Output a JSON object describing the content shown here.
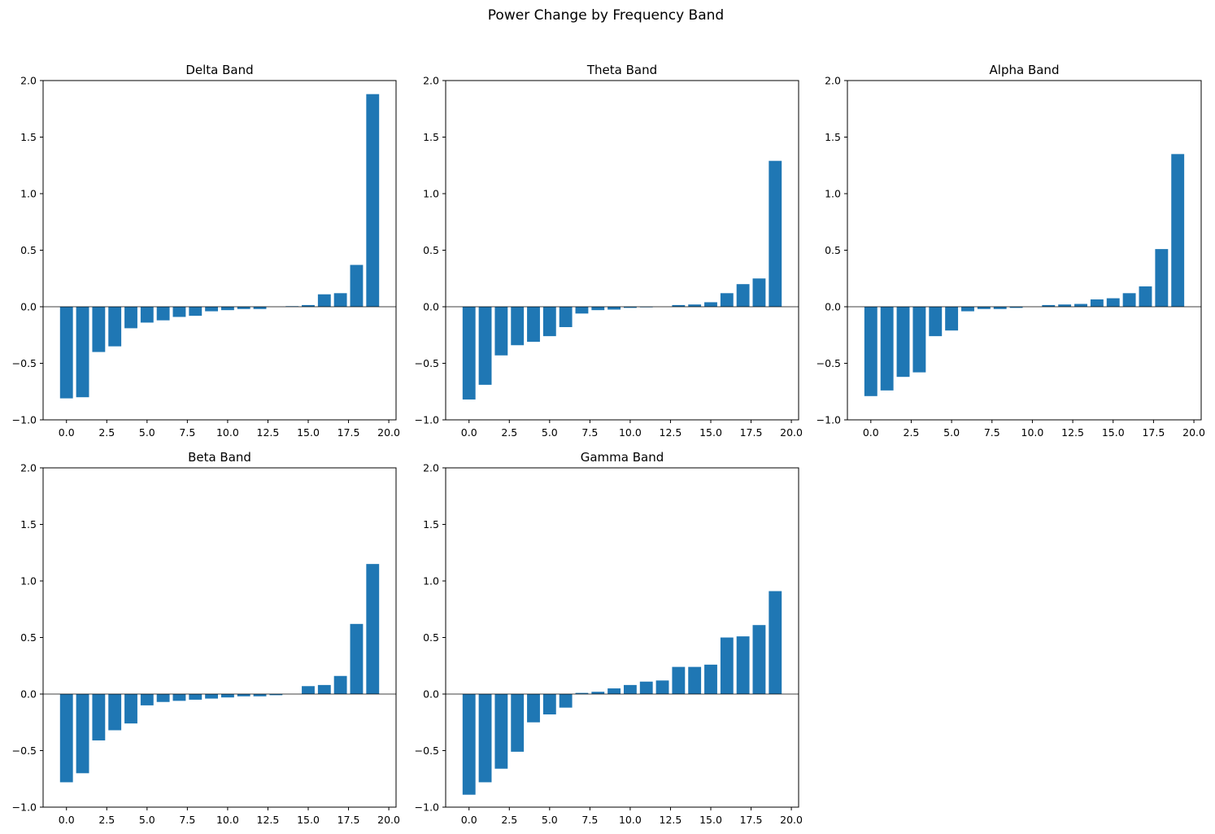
{
  "figure": {
    "title": "Power Change by Frequency Band"
  },
  "colors": {
    "bar": "#1f77b4",
    "axis": "#000000",
    "background": "#ffffff"
  },
  "chart_data": [
    {
      "type": "bar",
      "title": "Delta Band",
      "x": [
        0,
        1,
        2,
        3,
        4,
        5,
        6,
        7,
        8,
        9,
        10,
        11,
        12,
        13,
        14,
        15,
        16,
        17,
        18,
        19
      ],
      "values": [
        -0.81,
        -0.8,
        -0.4,
        -0.35,
        -0.19,
        -0.14,
        -0.12,
        -0.09,
        -0.08,
        -0.04,
        -0.03,
        -0.02,
        -0.02,
        0.0,
        0.005,
        0.015,
        0.11,
        0.12,
        0.37,
        1.88
      ],
      "xlim": [
        -1.45,
        20.45
      ],
      "ylim": [
        -1.0,
        2.0
      ],
      "xticks": [
        "0.0",
        "2.5",
        "5.0",
        "7.5",
        "10.0",
        "12.5",
        "15.0",
        "17.5",
        "20.0"
      ],
      "yticks": [
        "−1.0",
        "−0.5",
        "0.0",
        "0.5",
        "1.0",
        "1.5",
        "2.0"
      ],
      "grid": false
    },
    {
      "type": "bar",
      "title": "Theta Band",
      "x": [
        0,
        1,
        2,
        3,
        4,
        5,
        6,
        7,
        8,
        9,
        10,
        11,
        12,
        13,
        14,
        15,
        16,
        17,
        18,
        19
      ],
      "values": [
        -0.82,
        -0.69,
        -0.43,
        -0.34,
        -0.31,
        -0.26,
        -0.18,
        -0.06,
        -0.03,
        -0.025,
        -0.01,
        -0.005,
        0.0,
        0.015,
        0.02,
        0.04,
        0.12,
        0.2,
        0.25,
        1.29
      ],
      "xlim": [
        -1.45,
        20.45
      ],
      "ylim": [
        -1.0,
        2.0
      ],
      "xticks": [
        "0.0",
        "2.5",
        "5.0",
        "7.5",
        "10.0",
        "12.5",
        "15.0",
        "17.5",
        "20.0"
      ],
      "yticks": [
        "−1.0",
        "−0.5",
        "0.0",
        "0.5",
        "1.0",
        "1.5",
        "2.0"
      ],
      "grid": false
    },
    {
      "type": "bar",
      "title": "Alpha Band",
      "x": [
        0,
        1,
        2,
        3,
        4,
        5,
        6,
        7,
        8,
        9,
        10,
        11,
        12,
        13,
        14,
        15,
        16,
        17,
        18,
        19
      ],
      "values": [
        -0.79,
        -0.74,
        -0.62,
        -0.58,
        -0.26,
        -0.21,
        -0.04,
        -0.02,
        -0.02,
        -0.01,
        0.0,
        0.015,
        0.02,
        0.025,
        0.065,
        0.075,
        0.12,
        0.18,
        0.51,
        1.35
      ],
      "xlim": [
        -1.45,
        20.45
      ],
      "ylim": [
        -1.0,
        2.0
      ],
      "xticks": [
        "0.0",
        "2.5",
        "5.0",
        "7.5",
        "10.0",
        "12.5",
        "15.0",
        "17.5",
        "20.0"
      ],
      "yticks": [
        "−1.0",
        "−0.5",
        "0.0",
        "0.5",
        "1.0",
        "1.5",
        "2.0"
      ],
      "grid": false
    },
    {
      "type": "bar",
      "title": "Beta Band",
      "x": [
        0,
        1,
        2,
        3,
        4,
        5,
        6,
        7,
        8,
        9,
        10,
        11,
        12,
        13,
        14,
        15,
        16,
        17,
        18,
        19
      ],
      "values": [
        -0.78,
        -0.7,
        -0.41,
        -0.32,
        -0.26,
        -0.1,
        -0.07,
        -0.06,
        -0.05,
        -0.04,
        -0.03,
        -0.02,
        -0.02,
        -0.01,
        0.0,
        0.07,
        0.08,
        0.16,
        0.62,
        1.15
      ],
      "xlim": [
        -1.45,
        20.45
      ],
      "ylim": [
        -1.0,
        2.0
      ],
      "xticks": [
        "0.0",
        "2.5",
        "5.0",
        "7.5",
        "10.0",
        "12.5",
        "15.0",
        "17.5",
        "20.0"
      ],
      "yticks": [
        "−1.0",
        "−0.5",
        "0.0",
        "0.5",
        "1.0",
        "1.5",
        "2.0"
      ],
      "grid": false
    },
    {
      "type": "bar",
      "title": "Gamma Band",
      "x": [
        0,
        1,
        2,
        3,
        4,
        5,
        6,
        7,
        8,
        9,
        10,
        11,
        12,
        13,
        14,
        15,
        16,
        17,
        18,
        19
      ],
      "values": [
        -0.89,
        -0.78,
        -0.66,
        -0.51,
        -0.25,
        -0.18,
        -0.12,
        0.01,
        0.02,
        0.05,
        0.08,
        0.11,
        0.12,
        0.24,
        0.24,
        0.26,
        0.5,
        0.51,
        0.61,
        0.91
      ],
      "xlim": [
        -1.45,
        20.45
      ],
      "ylim": [
        -1.0,
        2.0
      ],
      "xticks": [
        "0.0",
        "2.5",
        "5.0",
        "7.5",
        "10.0",
        "12.5",
        "15.0",
        "17.5",
        "20.0"
      ],
      "yticks": [
        "−1.0",
        "−0.5",
        "0.0",
        "0.5",
        "1.0",
        "1.5",
        "2.0"
      ],
      "grid": false
    }
  ]
}
